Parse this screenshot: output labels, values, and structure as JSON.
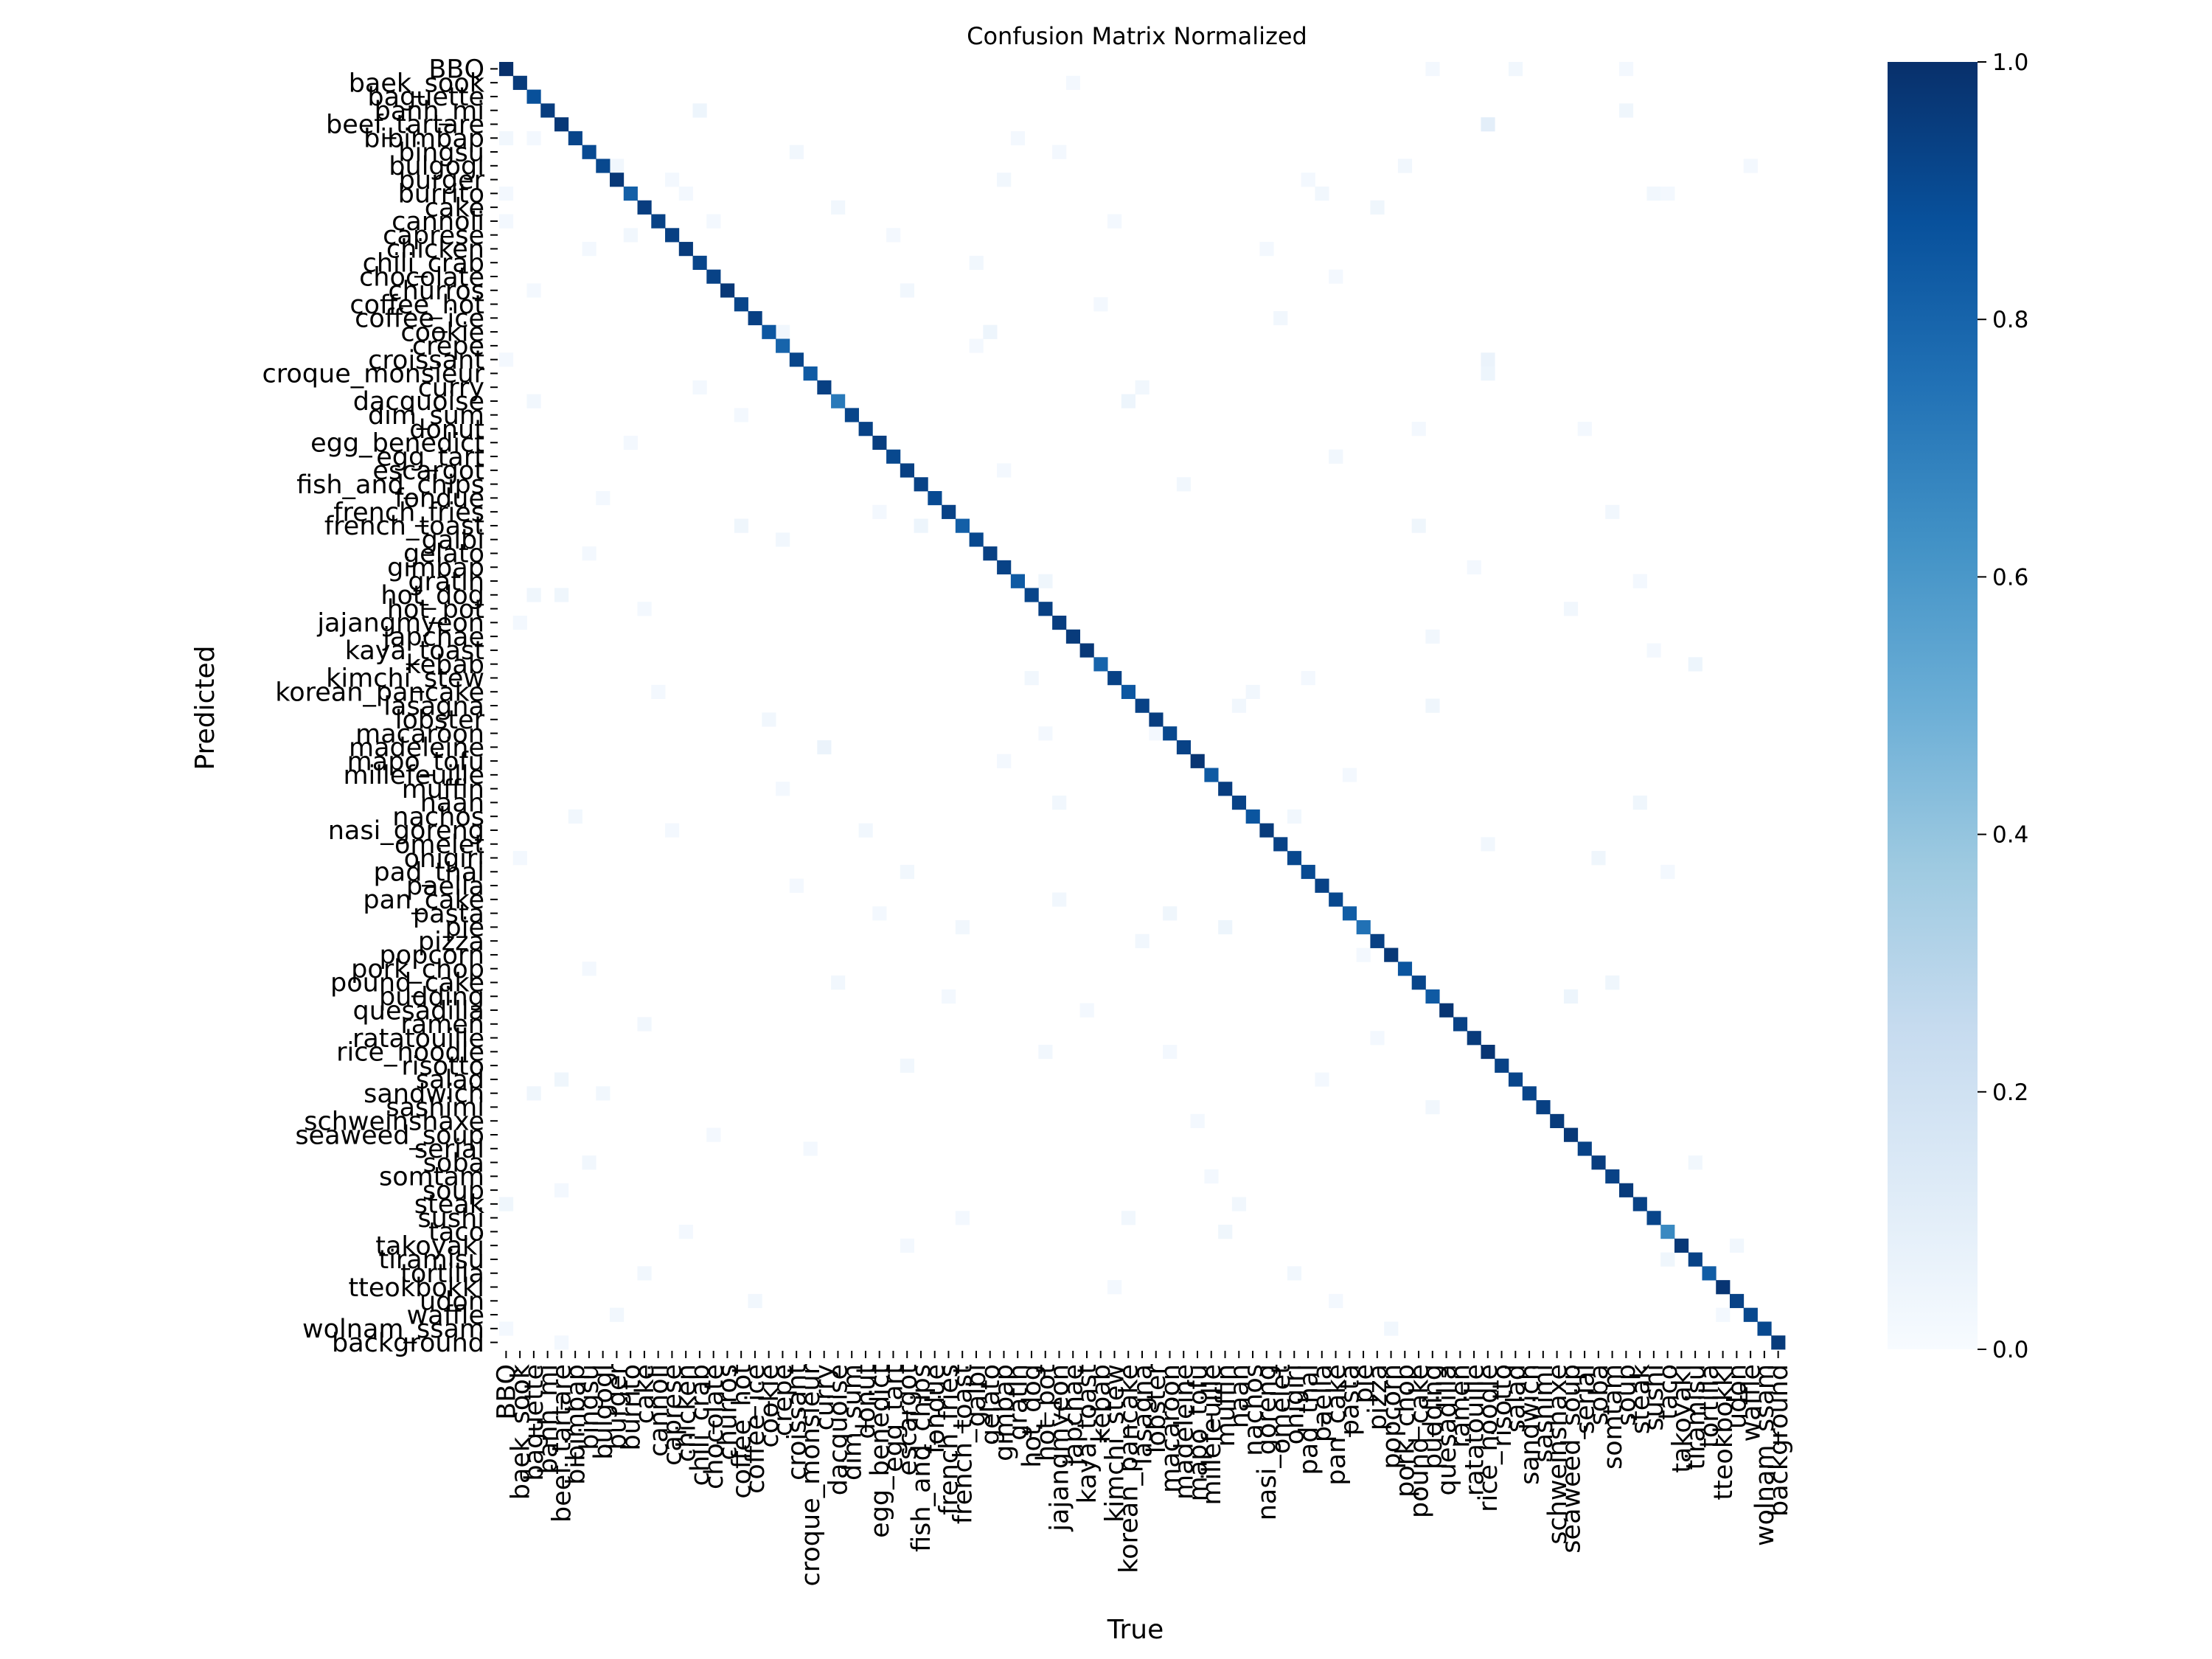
{
  "chart_data": {
    "type": "heatmap",
    "title": "Confusion Matrix Normalized",
    "xlabel": "True",
    "ylabel": "Predicted",
    "labels": [
      "BBQ",
      "baek_sook",
      "baguette",
      "banh_mi",
      "beef_tartare",
      "bibimbap",
      "bingsu",
      "bulgogi",
      "burger",
      "burrito",
      "cake",
      "cannoli",
      "caprese",
      "chicken",
      "chili_crab",
      "chocolate",
      "churros",
      "coffee_hot",
      "coffee_ice",
      "cookie",
      "crepe",
      "croissant",
      "croque_monsieur",
      "curry",
      "dacquoise",
      "dim_sum",
      "donut",
      "egg_benedict",
      "egg_tart",
      "escargot",
      "fish_and_chips",
      "fondue",
      "french_fries",
      "french_toast",
      "galbi",
      "gelato",
      "gimbap",
      "gratin",
      "hot_dog",
      "hot_pot",
      "jajangmyeon",
      "japchae",
      "kaya_toast",
      "kebab",
      "kimchi_stew",
      "korean_pancake",
      "lasagna",
      "lobster",
      "macaroon",
      "madeleine",
      "mapo_tofu",
      "millefeuille",
      "muffin",
      "naan",
      "nachos",
      "nasi_goreng",
      "omelet",
      "onigiri",
      "pad_thai",
      "paella",
      "pan_cake",
      "pasta",
      "pie",
      "pizza",
      "popcorn",
      "pork_chop",
      "pound_cake",
      "pudding",
      "quesadilla",
      "ramen",
      "ratatouille",
      "rice_noodle",
      "risotto",
      "salad",
      "sandwich",
      "sashimi",
      "schweinshaxe",
      "seaweed_soup",
      "serial",
      "soba",
      "somtam",
      "soup",
      "steak",
      "sushi",
      "taco",
      "takoyaki",
      "tiramisu",
      "tortilla",
      "tteokbokki",
      "udon",
      "waffle",
      "wolnam_ssam",
      "background"
    ],
    "diagonal": [
      1.0,
      0.96,
      0.88,
      0.95,
      0.97,
      0.92,
      0.9,
      0.91,
      0.97,
      0.82,
      0.95,
      0.93,
      0.94,
      0.96,
      0.92,
      0.93,
      0.97,
      0.92,
      0.94,
      0.85,
      0.8,
      0.92,
      0.84,
      0.94,
      0.72,
      0.92,
      0.93,
      0.95,
      0.91,
      0.94,
      0.93,
      0.9,
      0.93,
      0.82,
      0.91,
      0.94,
      0.93,
      0.84,
      0.92,
      0.94,
      0.95,
      0.96,
      0.97,
      0.8,
      0.93,
      0.85,
      0.93,
      0.95,
      0.91,
      0.93,
      0.98,
      0.84,
      0.95,
      0.93,
      0.86,
      0.96,
      0.93,
      0.91,
      0.9,
      0.93,
      0.91,
      0.83,
      0.75,
      0.94,
      0.97,
      0.86,
      0.92,
      0.84,
      0.98,
      0.93,
      0.96,
      0.98,
      0.93,
      0.92,
      0.92,
      0.94,
      0.96,
      0.97,
      0.93,
      0.95,
      0.93,
      0.96,
      0.93,
      0.92,
      0.66,
      0.97,
      0.93,
      0.83,
      0.98,
      0.93,
      0.91,
      0.91,
      0.96
    ],
    "off_diagonal": [
      [
        0,
        67,
        0.02
      ],
      [
        0,
        73,
        0.03
      ],
      [
        0,
        81,
        0.02
      ],
      [
        1,
        41,
        0.02
      ],
      [
        3,
        14,
        0.05
      ],
      [
        3,
        81,
        0.04
      ],
      [
        4,
        71,
        0.1
      ],
      [
        5,
        0,
        0.03
      ],
      [
        5,
        2,
        0.02
      ],
      [
        5,
        37,
        0.02
      ],
      [
        6,
        21,
        0.03
      ],
      [
        6,
        40,
        0.02
      ],
      [
        7,
        8,
        0.03
      ],
      [
        7,
        65,
        0.03
      ],
      [
        7,
        90,
        0.02
      ],
      [
        8,
        12,
        0.02
      ],
      [
        8,
        36,
        0.03
      ],
      [
        8,
        58,
        0.02
      ],
      [
        9,
        0,
        0.02
      ],
      [
        9,
        13,
        0.02
      ],
      [
        9,
        59,
        0.03
      ],
      [
        9,
        83,
        0.03
      ],
      [
        9,
        84,
        0.02
      ],
      [
        10,
        24,
        0.03
      ],
      [
        10,
        63,
        0.04
      ],
      [
        11,
        0,
        0.02
      ],
      [
        11,
        15,
        0.02
      ],
      [
        11,
        44,
        0.02
      ],
      [
        12,
        9,
        0.03
      ],
      [
        12,
        28,
        0.02
      ],
      [
        13,
        6,
        0.02
      ],
      [
        13,
        55,
        0.02
      ],
      [
        14,
        34,
        0.03
      ],
      [
        15,
        60,
        0.02
      ],
      [
        16,
        2,
        0.02
      ],
      [
        16,
        29,
        0.03
      ],
      [
        17,
        43,
        0.02
      ],
      [
        18,
        56,
        0.03
      ],
      [
        19,
        20,
        0.03
      ],
      [
        19,
        35,
        0.05
      ],
      [
        20,
        34,
        0.02
      ],
      [
        21,
        0,
        0.02
      ],
      [
        21,
        71,
        0.06
      ],
      [
        22,
        71,
        0.05
      ],
      [
        23,
        14,
        0.02
      ],
      [
        23,
        46,
        0.03
      ],
      [
        24,
        2,
        0.03
      ],
      [
        24,
        45,
        0.05
      ],
      [
        25,
        17,
        0.02
      ],
      [
        26,
        66,
        0.02
      ],
      [
        26,
        78,
        0.02
      ],
      [
        27,
        9,
        0.02
      ],
      [
        28,
        60,
        0.03
      ],
      [
        29,
        36,
        0.02
      ],
      [
        30,
        49,
        0.03
      ],
      [
        31,
        7,
        0.02
      ],
      [
        32,
        27,
        0.02
      ],
      [
        32,
        80,
        0.03
      ],
      [
        33,
        17,
        0.04
      ],
      [
        33,
        30,
        0.05
      ],
      [
        33,
        66,
        0.04
      ],
      [
        34,
        20,
        0.03
      ],
      [
        35,
        6,
        0.02
      ],
      [
        36,
        70,
        0.02
      ],
      [
        37,
        39,
        0.04
      ],
      [
        37,
        82,
        0.02
      ],
      [
        38,
        2,
        0.04
      ],
      [
        38,
        4,
        0.04
      ],
      [
        39,
        10,
        0.02
      ],
      [
        39,
        77,
        0.03
      ],
      [
        40,
        1,
        0.02
      ],
      [
        41,
        67,
        0.03
      ],
      [
        42,
        83,
        0.02
      ],
      [
        43,
        86,
        0.05
      ],
      [
        44,
        38,
        0.03
      ],
      [
        44,
        58,
        0.02
      ],
      [
        45,
        11,
        0.02
      ],
      [
        45,
        54,
        0.03
      ],
      [
        46,
        53,
        0.03
      ],
      [
        46,
        67,
        0.04
      ],
      [
        47,
        19,
        0.03
      ],
      [
        48,
        39,
        0.02
      ],
      [
        48,
        47,
        0.02
      ],
      [
        49,
        23,
        0.06
      ],
      [
        50,
        36,
        0.02
      ],
      [
        51,
        61,
        0.02
      ],
      [
        52,
        20,
        0.02
      ],
      [
        53,
        40,
        0.03
      ],
      [
        53,
        82,
        0.04
      ],
      [
        54,
        5,
        0.03
      ],
      [
        54,
        57,
        0.03
      ],
      [
        55,
        12,
        0.02
      ],
      [
        55,
        26,
        0.03
      ],
      [
        56,
        71,
        0.03
      ],
      [
        57,
        1,
        0.02
      ],
      [
        57,
        79,
        0.04
      ],
      [
        58,
        29,
        0.03
      ],
      [
        58,
        84,
        0.02
      ],
      [
        59,
        21,
        0.02
      ],
      [
        60,
        40,
        0.03
      ],
      [
        61,
        27,
        0.02
      ],
      [
        61,
        48,
        0.04
      ],
      [
        62,
        33,
        0.03
      ],
      [
        62,
        52,
        0.05
      ],
      [
        63,
        46,
        0.03
      ],
      [
        64,
        62,
        0.02
      ],
      [
        65,
        6,
        0.02
      ],
      [
        66,
        24,
        0.03
      ],
      [
        66,
        80,
        0.04
      ],
      [
        67,
        32,
        0.02
      ],
      [
        67,
        77,
        0.05
      ],
      [
        68,
        42,
        0.02
      ],
      [
        69,
        10,
        0.03
      ],
      [
        70,
        63,
        0.02
      ],
      [
        71,
        39,
        0.03
      ],
      [
        71,
        48,
        0.02
      ],
      [
        72,
        29,
        0.03
      ],
      [
        73,
        4,
        0.04
      ],
      [
        73,
        59,
        0.02
      ],
      [
        74,
        2,
        0.04
      ],
      [
        74,
        7,
        0.03
      ],
      [
        75,
        67,
        0.03
      ],
      [
        76,
        50,
        0.02
      ],
      [
        77,
        15,
        0.02
      ],
      [
        78,
        22,
        0.02
      ],
      [
        79,
        6,
        0.03
      ],
      [
        79,
        86,
        0.03
      ],
      [
        80,
        51,
        0.02
      ],
      [
        81,
        4,
        0.02
      ],
      [
        82,
        0,
        0.04
      ],
      [
        82,
        53,
        0.03
      ],
      [
        83,
        45,
        0.03
      ],
      [
        83,
        33,
        0.02
      ],
      [
        84,
        13,
        0.02
      ],
      [
        84,
        52,
        0.04
      ],
      [
        85,
        29,
        0.02
      ],
      [
        85,
        89,
        0.03
      ],
      [
        86,
        84,
        0.04
      ],
      [
        87,
        10,
        0.03
      ],
      [
        87,
        57,
        0.03
      ],
      [
        88,
        44,
        0.02
      ],
      [
        89,
        18,
        0.03
      ],
      [
        89,
        60,
        0.02
      ],
      [
        90,
        8,
        0.03
      ],
      [
        90,
        88,
        0.02
      ],
      [
        91,
        0,
        0.02
      ],
      [
        91,
        64,
        0.03
      ],
      [
        92,
        4,
        0.02
      ]
    ],
    "colorbar": {
      "min": 0.0,
      "max": 1.0,
      "ticks": [
        "0.0",
        "0.2",
        "0.4",
        "0.6",
        "0.8",
        "1.0"
      ],
      "colormap": "Blues",
      "color_min": "#f7fbff",
      "color_max": "#08306b"
    },
    "grid": false
  }
}
